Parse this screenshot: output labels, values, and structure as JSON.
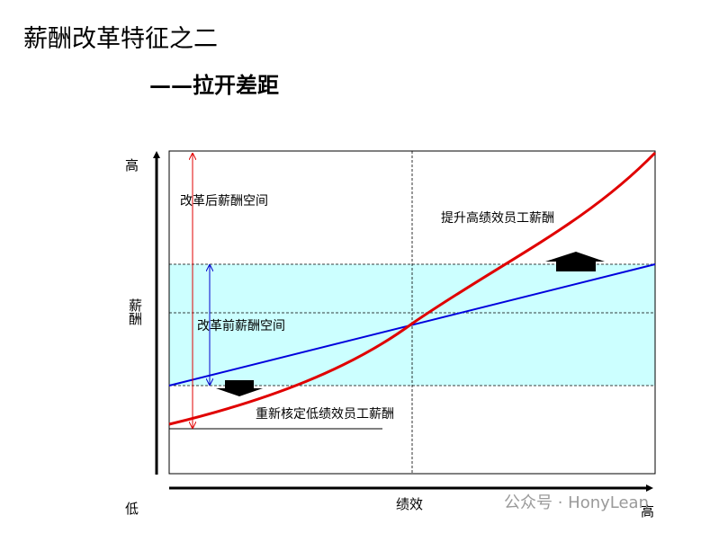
{
  "header": {
    "title": "薪酬改革特征之二",
    "subtitle": "——拉开差距"
  },
  "axes": {
    "y_high": "高",
    "y_label": "薪酬",
    "y_low": "低",
    "x_label": "绩效",
    "x_high": "高"
  },
  "annotations": {
    "after_reform": "改革后薪酬空间",
    "before_reform": "改革前薪酬空间",
    "raise_high": "提升高绩效员工薪酬",
    "reset_low": "重新核定低绩效员工薪酬"
  },
  "watermark": "公众号 · HonyLean"
}
